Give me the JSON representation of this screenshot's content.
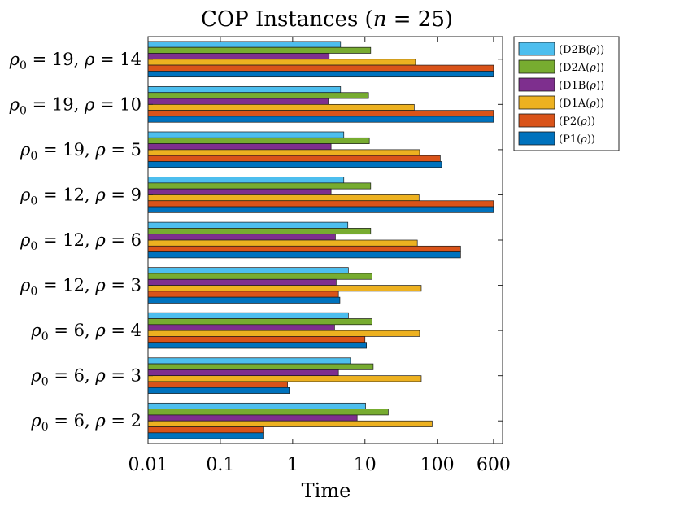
{
  "chart_data": {
    "type": "bar",
    "orientation": "horizontal",
    "title": "COP Instances (n = 25)",
    "xlabel": "Time",
    "ylabel": "",
    "xscale": "log",
    "xlim": [
      0.01,
      800
    ],
    "xticks": [
      {
        "value": 0.01,
        "label": "0.01"
      },
      {
        "value": 0.1,
        "label": "0.1"
      },
      {
        "value": 1,
        "label": "1"
      },
      {
        "value": 10,
        "label": "10"
      },
      {
        "value": 100,
        "label": "100"
      },
      {
        "value": 600,
        "label": "600"
      }
    ],
    "categories": [
      "ρ0 = 6, ρ = 2",
      "ρ0 = 6, ρ = 3",
      "ρ0 = 6, ρ = 4",
      "ρ0 = 12, ρ = 3",
      "ρ0 = 12, ρ = 6",
      "ρ0 = 12, ρ = 9",
      "ρ0 = 19, ρ = 5",
      "ρ0 = 19, ρ = 10",
      "ρ0 = 19, ρ = 14"
    ],
    "legend_position": "outside-top-right",
    "series": [
      {
        "name": "(P1(ρ))",
        "color": "#0072BD",
        "values": [
          0.4,
          0.9,
          10.5,
          4.5,
          210,
          600,
          115,
          600,
          600
        ]
      },
      {
        "name": "(P2(ρ))",
        "color": "#D95319",
        "values": [
          0.4,
          0.85,
          10,
          4.3,
          210,
          600,
          110,
          600,
          600
        ]
      },
      {
        "name": "(D1A(ρ))",
        "color": "#EDB120",
        "values": [
          85,
          60,
          57,
          60,
          53,
          56,
          57,
          48,
          50
        ]
      },
      {
        "name": "(D1B(ρ))",
        "color": "#7E2F8E",
        "values": [
          7.8,
          4.3,
          3.8,
          4.0,
          3.9,
          3.4,
          3.4,
          3.1,
          3.2
        ]
      },
      {
        "name": "(D2A(ρ))",
        "color": "#77AC30",
        "values": [
          21,
          13,
          12.5,
          12.5,
          12,
          12,
          11.5,
          11.2,
          12
        ]
      },
      {
        "name": "(D2B(ρ))",
        "color": "#4DBEEE",
        "values": [
          10.2,
          6.3,
          5.9,
          5.9,
          5.8,
          5.1,
          5.1,
          4.6,
          4.6
        ]
      }
    ]
  }
}
